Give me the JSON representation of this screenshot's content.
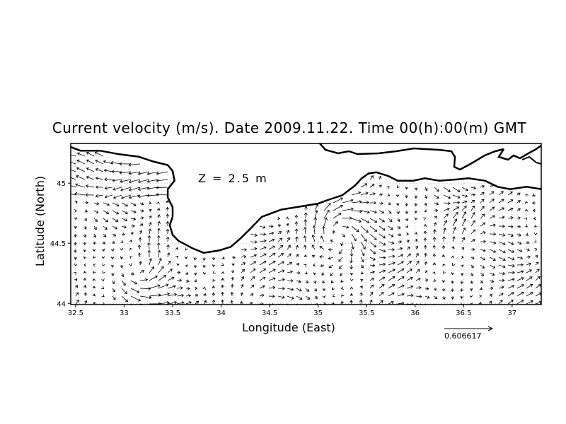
{
  "title": "Current velocity (m/s). Date 2009.11.22. Time 00(h):00(m) GMT",
  "depth_label": "Z = 2.5 m",
  "xlabel": "Longitude (East)",
  "ylabel": "Latitude (North)",
  "x_ticks": [
    "32.5",
    "33",
    "33.5",
    "34",
    "34.5",
    "35",
    "35.5",
    "36",
    "36.5",
    "37"
  ],
  "y_ticks": [
    "44",
    "44.5",
    "45"
  ],
  "scale_label": "0.606617",
  "chart_data": {
    "type": "vector-field",
    "title": "Current velocity (m/s). Date 2009.11.22. Time 00(h):00(m) GMT",
    "xlabel": "Longitude (East)",
    "ylabel": "Latitude (North)",
    "xlim": [
      32.45,
      37.3
    ],
    "ylim": [
      43.99,
      45.33
    ],
    "x_ticks": [
      32.5,
      33,
      33.5,
      34,
      34.5,
      35,
      35.5,
      36,
      36.5,
      37
    ],
    "y_ticks": [
      44,
      44.5,
      45
    ],
    "grid": true,
    "depth_m": 2.5,
    "reference_vector_ms": 0.606617,
    "coastline": [
      [
        32.45,
        45.3
      ],
      [
        32.55,
        45.27
      ],
      [
        32.75,
        45.27
      ],
      [
        32.95,
        45.24
      ],
      [
        33.15,
        45.22
      ],
      [
        33.3,
        45.18
      ],
      [
        33.45,
        45.15
      ],
      [
        33.5,
        45.1
      ],
      [
        33.52,
        45.02
      ],
      [
        33.45,
        44.95
      ],
      [
        33.45,
        44.88
      ],
      [
        33.5,
        44.8
      ],
      [
        33.5,
        44.72
      ],
      [
        33.47,
        44.65
      ],
      [
        33.5,
        44.57
      ],
      [
        33.56,
        44.52
      ],
      [
        33.7,
        44.46
      ],
      [
        33.82,
        44.42
      ],
      [
        33.98,
        44.44
      ],
      [
        34.1,
        44.47
      ],
      [
        34.2,
        44.54
      ],
      [
        34.3,
        44.62
      ],
      [
        34.42,
        44.72
      ],
      [
        34.62,
        44.78
      ],
      [
        34.85,
        44.81
      ],
      [
        35.0,
        44.83
      ],
      [
        35.1,
        44.86
      ],
      [
        35.25,
        44.9
      ],
      [
        35.38,
        44.98
      ],
      [
        35.45,
        45.04
      ],
      [
        35.52,
        45.08
      ],
      [
        35.6,
        45.09
      ],
      [
        35.72,
        45.06
      ],
      [
        35.82,
        45.02
      ],
      [
        35.98,
        45.02
      ],
      [
        36.1,
        45.04
      ],
      [
        36.25,
        45.02
      ],
      [
        36.42,
        45.03
      ],
      [
        36.55,
        45.04
      ],
      [
        36.72,
        45.02
      ],
      [
        36.85,
        44.97
      ],
      [
        36.98,
        44.95
      ],
      [
        37.15,
        44.97
      ],
      [
        37.3,
        44.95
      ]
    ],
    "flow_features": [
      {
        "type": "westward-flow",
        "lon": [
          32.5,
          33.4
        ],
        "lat": [
          44.9,
          45.25
        ]
      },
      {
        "type": "cyclonic-eddy",
        "lon": 33.15,
        "lat": 44.22
      },
      {
        "type": "eddy",
        "lon": 35.2,
        "lat": 44.6
      },
      {
        "type": "convergence",
        "lon": 36.45,
        "lat": 44.8
      },
      {
        "type": "convergence",
        "lon": 37.15,
        "lat": 44.9
      }
    ]
  }
}
